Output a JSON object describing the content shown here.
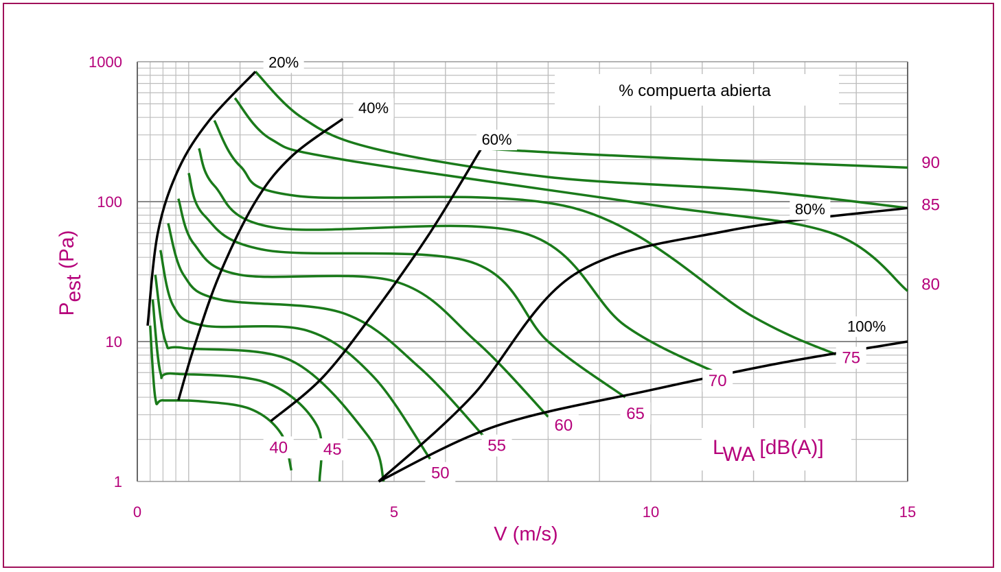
{
  "colors": {
    "frame": "#a0105a",
    "magenta_text": "#b5007a",
    "green_curve": "#1a7a1a",
    "black_curve": "#000000",
    "grid_major": "#888888",
    "grid_minor": "#bdbdbd"
  },
  "chart_data": {
    "type": "line",
    "title": "",
    "xlabel": "V (m/s)",
    "ylabel_main": "P",
    "ylabel_sub": "est",
    "ylabel_unit": " (Pa)",
    "xlim": [
      0,
      15
    ],
    "ylim": [
      1,
      1000
    ],
    "y_scale": "log",
    "grid": true,
    "x_ticks": [
      {
        "v": 0,
        "label": "0"
      },
      {
        "v": 5,
        "label": "5"
      },
      {
        "v": 10,
        "label": "10"
      },
      {
        "v": 15,
        "label": "15"
      }
    ],
    "y_ticks": [
      {
        "v": 1,
        "label": "1"
      },
      {
        "v": 10,
        "label": "10"
      },
      {
        "v": 100,
        "label": "100"
      },
      {
        "v": 1000,
        "label": "1000"
      }
    ],
    "legend_box": "% compuerta abierta",
    "lwa_label_main": "L",
    "lwa_label_sub": "WA",
    "lwa_label_unit": " [dB(A)]",
    "damper_series": [
      {
        "name": "20%",
        "points": [
          [
            0.2,
            13
          ],
          [
            0.4,
            60
          ],
          [
            0.8,
            170
          ],
          [
            1.4,
            380
          ],
          [
            2.3,
            850
          ]
        ],
        "label_at": [
          2.85,
          910
        ]
      },
      {
        "name": "40%",
        "points": [
          [
            0.8,
            3.8
          ],
          [
            1.1,
            9
          ],
          [
            1.6,
            30
          ],
          [
            2.3,
            100
          ],
          [
            3.0,
            210
          ],
          [
            4.0,
            390
          ]
        ],
        "label_at": [
          4.6,
          430
        ]
      },
      {
        "name": "60%",
        "points": [
          [
            2.6,
            2.7
          ],
          [
            3.6,
            5.5
          ],
          [
            4.6,
            16
          ],
          [
            5.7,
            60
          ],
          [
            6.7,
            240
          ]
        ],
        "label_at": [
          7.0,
          255
        ]
      },
      {
        "name": "80%",
        "points": [
          [
            4.7,
            1
          ],
          [
            6.5,
            4
          ],
          [
            8.5,
            30
          ],
          [
            11.5,
            62
          ],
          [
            15,
            90
          ]
        ],
        "label_at": [
          13.1,
          81
        ]
      },
      {
        "name": "100%",
        "points": [
          [
            4.7,
            1
          ],
          [
            7,
            2.5
          ],
          [
            10,
            4.5
          ],
          [
            12.5,
            7
          ],
          [
            15,
            10
          ]
        ],
        "label_at": [
          14.2,
          11.8
        ]
      }
    ],
    "lwa_series": [
      {
        "name": "40",
        "points": [
          [
            0.25,
            13
          ],
          [
            0.35,
            3.95
          ],
          [
            0.5,
            3.8
          ],
          [
            1.2,
            3.75
          ],
          [
            2.2,
            3.3
          ],
          [
            2.8,
            2.2
          ],
          [
            3.0,
            1.2
          ]
        ],
        "label_at": [
          2.75,
          1.6
        ]
      },
      {
        "name": "45",
        "points": [
          [
            0.3,
            20
          ],
          [
            0.45,
            6
          ],
          [
            0.7,
            5.9
          ],
          [
            2.5,
            5.1
          ],
          [
            3.5,
            2.5
          ],
          [
            3.55,
            1.0
          ]
        ],
        "label_at": [
          3.8,
          1.55
        ]
      },
      {
        "name": "50",
        "points": [
          [
            0.35,
            30
          ],
          [
            0.55,
            10
          ],
          [
            0.9,
            9
          ],
          [
            3.0,
            7.3
          ],
          [
            4.5,
            2.1
          ],
          [
            4.8,
            1.0
          ]
        ],
        "label_at": [
          5.9,
          1.05
        ]
      },
      {
        "name": "55",
        "points": [
          [
            0.45,
            45
          ],
          [
            0.7,
            18
          ],
          [
            1.3,
            13
          ],
          [
            3.3,
            12
          ],
          [
            4.6,
            5.6
          ],
          [
            5.7,
            1.45
          ]
        ],
        "label_at": [
          7.0,
          1.65
        ]
      },
      {
        "name": "60",
        "points": [
          [
            0.6,
            70
          ],
          [
            0.9,
            30
          ],
          [
            1.6,
            20
          ],
          [
            4.0,
            16
          ],
          [
            5.5,
            6.5
          ],
          [
            6.8,
            2.0
          ]
        ],
        "label_at": [
          8.3,
          2.3
        ]
      },
      {
        "name": "65",
        "points": [
          [
            0.8,
            105
          ],
          [
            1.1,
            50
          ],
          [
            2.0,
            30
          ],
          [
            5.0,
            27
          ],
          [
            6.6,
            10
          ],
          [
            8.0,
            2.9
          ]
        ],
        "label_at": [
          9.7,
          2.8
        ]
      },
      {
        "name": "70",
        "points": [
          [
            1.0,
            160
          ],
          [
            1.3,
            80
          ],
          [
            2.5,
            45
          ],
          [
            6.5,
            37
          ],
          [
            8.0,
            10
          ],
          [
            9.5,
            4.0
          ]
        ],
        "label_at": [
          11.3,
          4.8
        ]
      },
      {
        "name": "75",
        "points": [
          [
            1.2,
            240
          ],
          [
            1.5,
            130
          ],
          [
            2.7,
            65
          ],
          [
            7.5,
            60
          ],
          [
            9.5,
            13
          ],
          [
            11.4,
            5.7
          ]
        ],
        "label_at": [
          13.9,
          7.0
        ]
      },
      {
        "name": "80",
        "points": [
          [
            1.5,
            380
          ],
          [
            2.0,
            180
          ],
          [
            3.1,
            110
          ],
          [
            8.5,
            90
          ],
          [
            12,
            15
          ],
          [
            13.6,
            8.1
          ]
        ],
        "label_at": [
          15.45,
          23.5
        ]
      },
      {
        "name": "85",
        "points": [
          [
            1.9,
            550
          ],
          [
            2.6,
            280
          ],
          [
            4.0,
            200
          ],
          [
            10,
            95
          ],
          [
            13.5,
            60
          ],
          [
            15,
            23
          ]
        ],
        "label_at": [
          15.45,
          87
        ]
      },
      {
        "name": "90",
        "points": [
          [
            2.3,
            850
          ],
          [
            3.2,
            400
          ],
          [
            4.6,
            240
          ],
          [
            8,
            150
          ],
          [
            12,
            120
          ],
          [
            15,
            90
          ]
        ],
        "label_at": [
          15.45,
          174
        ]
      }
    ],
    "top_series": {
      "name": "top",
      "points": [
        [
          6.7,
          240
        ],
        [
          8.5,
          220
        ],
        [
          11,
          200
        ],
        [
          15,
          175
        ]
      ]
    }
  }
}
